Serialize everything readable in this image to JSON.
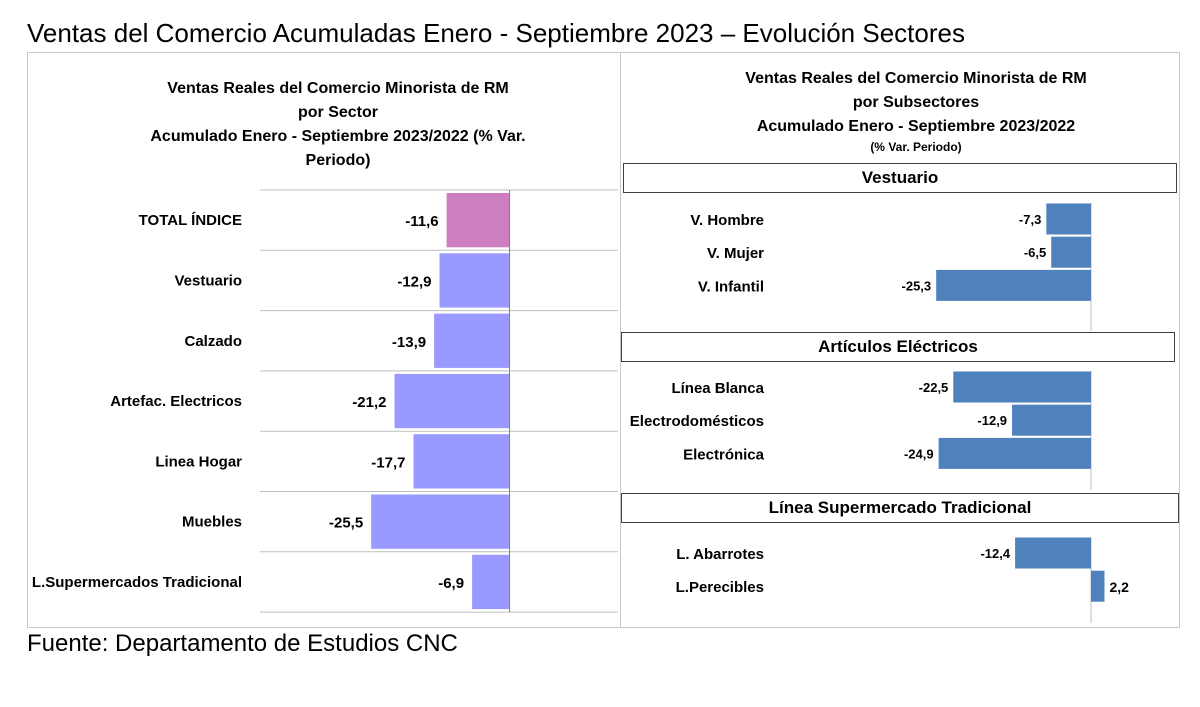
{
  "page": {
    "title": "Ventas del Comercio Acumuladas Enero - Septiembre 2023 – Evolución Sectores",
    "source": "Fuente: Departamento de Estudios CNC"
  },
  "colors": {
    "total_bar": "#cc7ec0",
    "sector_bar": "#9999ff",
    "subsector_bar": "#4f81bd",
    "gridline": "#bfbfbf",
    "axis": "#7f7f7f"
  },
  "left_chart": {
    "title_lines": [
      "Ventas Reales del Comercio Minorista de RM",
      "por Sector",
      "Acumulado Enero - Septiembre 2023/2022 (% Var.",
      "Periodo)"
    ]
  },
  "right_chart": {
    "title_lines": [
      "Ventas Reales del Comercio Minorista de RM",
      "por Subsectores",
      "Acumulado Enero - Septiembre 2023/2022"
    ],
    "subtitle": "(% Var. Periodo)"
  },
  "chart_data": [
    {
      "type": "bar",
      "orientation": "horizontal",
      "title": "Ventas Reales del Comercio Minorista de RM por Sector Acumulado Enero - Septiembre 2023/2022 (% Var. Periodo)",
      "categories": [
        "TOTAL ÍNDICE",
        "Vestuario",
        "Calzado",
        "Artefac. Electricos",
        "Linea Hogar",
        "Muebles",
        "L.Supermercados Tradicional"
      ],
      "values": [
        -11.6,
        -12.9,
        -13.9,
        -21.2,
        -17.7,
        -25.5,
        -6.9
      ],
      "value_labels": [
        "-11,6",
        "-12,9",
        "-13,9",
        "-21,2",
        "-17,7",
        "-25,5",
        "-6,9"
      ],
      "highlight_index": 0,
      "grid": true,
      "xlim": [
        -46,
        20
      ]
    },
    {
      "type": "bar",
      "orientation": "horizontal",
      "title": "Ventas Reales del Comercio Minorista de RM por Subsectores Acumulado Enero - Septiembre 2023/2022 (% Var. Periodo)",
      "grid": false,
      "xlim": [
        -45,
        3
      ],
      "groups": [
        {
          "name": "Vestuario",
          "categories": [
            "V. Hombre",
            "V. Mujer",
            "V. Infantil"
          ],
          "values": [
            -7.3,
            -6.5,
            -25.3
          ],
          "value_labels": [
            "-7,3",
            "-6,5",
            "-25,3"
          ]
        },
        {
          "name": "Artículos Eléctricos",
          "categories": [
            "Línea Blanca",
            "Electrodomésticos",
            "Electrónica"
          ],
          "values": [
            -22.5,
            -12.9,
            -24.9
          ],
          "value_labels": [
            "-22,5",
            "-12,9",
            "-24,9"
          ]
        },
        {
          "name": "Línea  Supermercado Tradicional",
          "categories": [
            "L. Abarrotes",
            "L.Perecibles"
          ],
          "values": [
            -12.4,
            2.2
          ],
          "value_labels": [
            "-12,4",
            "2,2"
          ]
        }
      ]
    }
  ]
}
